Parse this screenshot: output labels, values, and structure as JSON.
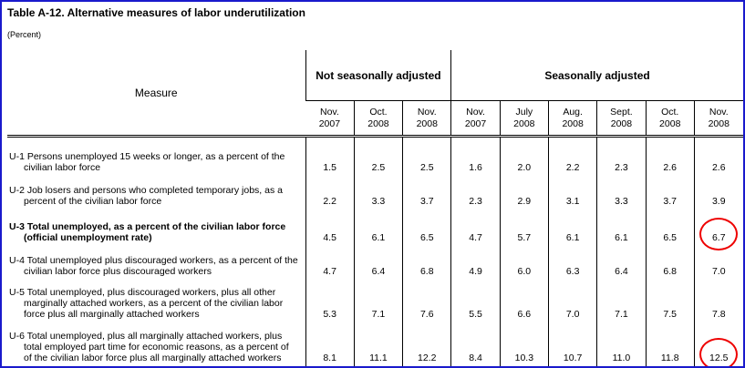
{
  "title": "Table A-12.  Alternative measures of labor underutilization",
  "unit": "(Percent)",
  "table": {
    "measure_header": "Measure",
    "groups": [
      "Not seasonally adjusted",
      "Seasonally adjusted"
    ],
    "columns": [
      [
        "Nov.",
        "2007"
      ],
      [
        "Oct.",
        "2008"
      ],
      [
        "Nov.",
        "2008"
      ],
      [
        "Nov.",
        "2007"
      ],
      [
        "July",
        "2008"
      ],
      [
        "Aug.",
        "2008"
      ],
      [
        "Sept.",
        "2008"
      ],
      [
        "Oct.",
        "2008"
      ],
      [
        "Nov.",
        "2008"
      ]
    ],
    "rows": [
      {
        "lines": [
          "U-1 Persons unemployed 15 weeks or longer, as a percent of the",
          "civilian labor force"
        ],
        "values": [
          "1.5",
          "2.5",
          "2.5",
          "1.6",
          "2.0",
          "2.2",
          "2.3",
          "2.6",
          "2.6"
        ]
      },
      {
        "lines": [
          "U-2 Job losers and persons who completed temporary jobs, as a",
          "percent of the civilian labor force"
        ],
        "values": [
          "2.2",
          "3.3",
          "3.7",
          "2.3",
          "2.9",
          "3.1",
          "3.3",
          "3.7",
          "3.9"
        ]
      },
      {
        "lines": [
          "U-3 Total unemployed, as a percent of the civilian labor force",
          "(official unemployment rate)"
        ],
        "values": [
          "4.5",
          "6.1",
          "6.5",
          "4.7",
          "5.7",
          "6.1",
          "6.1",
          "6.5",
          "6.7"
        ]
      },
      {
        "lines": [
          "U-4 Total unemployed plus discouraged workers, as a percent of the",
          "civilian labor force plus discouraged workers"
        ],
        "values": [
          "4.7",
          "6.4",
          "6.8",
          "4.9",
          "6.0",
          "6.3",
          "6.4",
          "6.8",
          "7.0"
        ]
      },
      {
        "lines": [
          "U-5 Total unemployed, plus discouraged workers, plus all other",
          "marginally attached workers, as a percent of the civilian labor",
          "force plus all marginally attached workers"
        ],
        "values": [
          "5.3",
          "7.1",
          "7.6",
          "5.5",
          "6.6",
          "7.0",
          "7.1",
          "7.5",
          "7.8"
        ]
      },
      {
        "lines": [
          "U-6 Total unemployed, plus all marginally attached workers, plus",
          "total employed part time for economic reasons, as a percent of",
          "of the civilian labor force plus all marginally attached workers"
        ],
        "values": [
          "8.1",
          "11.1",
          "12.2",
          "8.4",
          "10.3",
          "10.7",
          "11.0",
          "11.8",
          "12.5"
        ]
      }
    ]
  }
}
